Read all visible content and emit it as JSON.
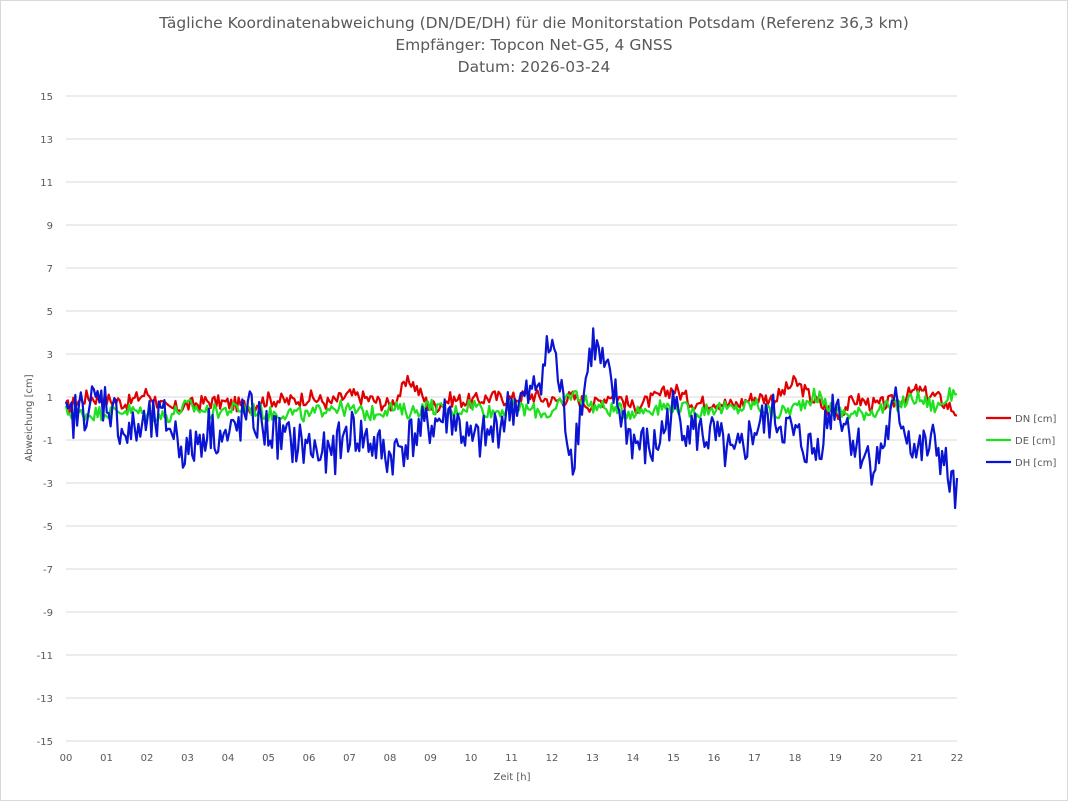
{
  "chart_data": {
    "type": "line",
    "title": [
      "Tägliche Koordinatenabweichung (DN/DE/DH) für die Monitorstation Potsdam (Referenz 36,3 km)",
      "Empfänger: Topcon Net-G5, 4 GNSS",
      "Datum: 2026-03-24"
    ],
    "xlabel": "Zeit [h]",
    "ylabel": "Abweichung [cm]",
    "xlim": [
      0,
      22
    ],
    "ylim": [
      -15,
      15
    ],
    "x_ticks": [
      "00",
      "01",
      "02",
      "03",
      "04",
      "05",
      "06",
      "07",
      "08",
      "09",
      "10",
      "11",
      "12",
      "13",
      "14",
      "15",
      "16",
      "17",
      "18",
      "19",
      "20",
      "21",
      "22"
    ],
    "y_ticks": [
      15,
      13,
      11,
      9,
      7,
      5,
      3,
      1,
      -1,
      -3,
      -5,
      -7,
      -9,
      -11,
      -13,
      -15
    ],
    "grid": true,
    "legend_position": "right",
    "x": [
      0,
      0.5,
      1,
      1.5,
      2,
      2.5,
      3,
      3.5,
      4,
      4.5,
      5,
      5.5,
      6,
      6.5,
      7,
      7.5,
      8,
      8.5,
      9,
      9.5,
      10,
      10.5,
      11,
      11.5,
      12,
      12.5,
      13,
      13.5,
      14,
      14.5,
      15,
      15.5,
      16,
      16.5,
      17,
      17.5,
      18,
      18.5,
      19,
      19.5,
      20,
      20.5,
      21,
      21.5,
      22
    ],
    "series": [
      {
        "name": "DN [cm]",
        "color": "#e00000",
        "values": [
          0.5,
          1.0,
          0.9,
          0.7,
          1.2,
          0.4,
          0.6,
          0.8,
          0.7,
          0.6,
          0.9,
          0.8,
          1.0,
          0.7,
          1.1,
          0.9,
          0.6,
          1.8,
          0.5,
          0.9,
          0.8,
          1.0,
          0.9,
          1.1,
          0.8,
          1.0,
          0.6,
          1.2,
          0.5,
          0.9,
          1.4,
          0.7,
          0.8,
          0.6,
          1.0,
          0.9,
          1.7,
          0.8,
          0.2,
          0.9,
          0.6,
          0.8,
          1.3,
          1.0,
          0.3
        ]
      },
      {
        "name": "DE [cm]",
        "color": "#1ee01e",
        "values": [
          0.3,
          0.2,
          0.3,
          0.4,
          0.2,
          0.1,
          0.6,
          0.3,
          0.4,
          0.5,
          0.2,
          0.3,
          0.1,
          0.6,
          0.4,
          0.2,
          0.5,
          0.3,
          0.6,
          0.2,
          0.7,
          0.3,
          0.5,
          0.4,
          0.2,
          1.2,
          0.6,
          0.4,
          0.3,
          0.5,
          0.6,
          0.3,
          0.5,
          0.4,
          0.7,
          0.2,
          0.5,
          1.1,
          0.3,
          0.2,
          0.4,
          0.6,
          1.0,
          0.5,
          1.4
        ]
      },
      {
        "name": "DH [cm]",
        "color": "#0a14d2",
        "values": [
          -0.2,
          0.6,
          0.9,
          -0.8,
          -0.3,
          -0.1,
          -1.7,
          -0.4,
          -1.0,
          0.3,
          -0.6,
          -1.1,
          -1.3,
          -1.9,
          -0.5,
          -1.1,
          -1.8,
          -0.9,
          -0.3,
          0.2,
          -1.2,
          -0.8,
          0.6,
          1.0,
          3.6,
          -1.9,
          3.6,
          1.2,
          -1.1,
          -1.5,
          0.4,
          -0.6,
          -0.9,
          -2.0,
          -0.5,
          0.1,
          -0.9,
          -1.6,
          0.9,
          -1.2,
          -2.2,
          0.6,
          -1.6,
          -1.2,
          -3.8
        ]
      }
    ]
  }
}
